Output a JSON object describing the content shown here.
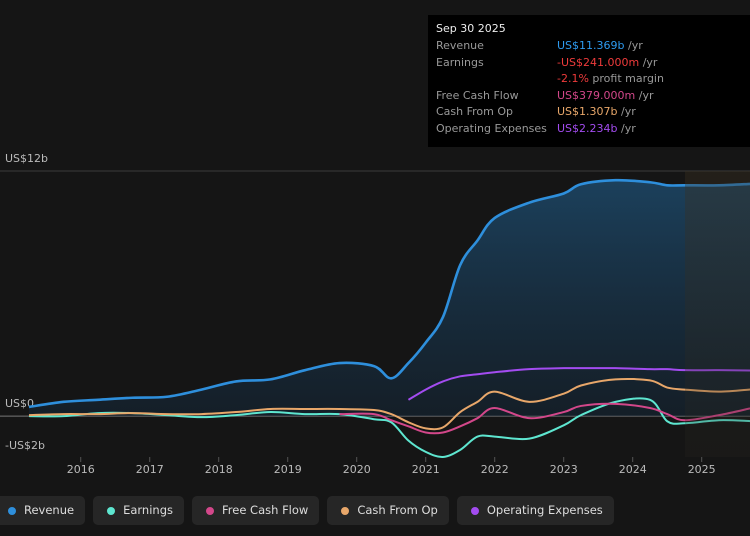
{
  "chart_data": {
    "type": "line",
    "x": [
      2015.25,
      2015.75,
      2016.25,
      2016.75,
      2017.25,
      2017.75,
      2018.25,
      2018.75,
      2019.25,
      2019.75,
      2020.25,
      2020.5,
      2020.75,
      2021,
      2021.25,
      2021.5,
      2021.75,
      2022,
      2022.5,
      2023,
      2023.25,
      2023.75,
      2024.25,
      2024.5,
      2024.75,
      2025.25,
      2025.7
    ],
    "xlim": [
      2014.83,
      2025.7
    ],
    "xticks": [
      2016,
      2017,
      2018,
      2019,
      2020,
      2021,
      2022,
      2023,
      2024,
      2025
    ],
    "ylim": [
      -2,
      12
    ],
    "yticks": [
      {
        "value": -2,
        "label": "-US$2b"
      },
      {
        "value": 0,
        "label": "US$0"
      },
      {
        "value": 12,
        "label": "US$12b"
      }
    ],
    "series": [
      {
        "name": "Revenue",
        "color": "#2e8fdc",
        "values": [
          0.45,
          0.7,
          0.8,
          0.9,
          0.95,
          1.3,
          1.7,
          1.8,
          2.25,
          2.6,
          2.45,
          1.85,
          2.6,
          3.6,
          4.85,
          7.4,
          8.6,
          9.7,
          10.45,
          10.9,
          11.35,
          11.55,
          11.45,
          11.3,
          11.3,
          11.3,
          11.369
        ]
      },
      {
        "name": "Earnings",
        "color": "#5ee6d0",
        "values": [
          0,
          0,
          0.15,
          0.15,
          0.05,
          -0.05,
          0.05,
          0.2,
          0.1,
          0.1,
          -0.15,
          -0.3,
          -1.2,
          -1.75,
          -2.0,
          -1.65,
          -1.0,
          -1.0,
          -1.1,
          -0.45,
          0.05,
          0.7,
          0.8,
          -0.25,
          -0.35,
          -0.2,
          -0.241
        ]
      },
      {
        "name": "Free Cash Flow",
        "color": "#d3478a",
        "values": [
          null,
          null,
          null,
          null,
          null,
          null,
          null,
          null,
          null,
          0.1,
          0.1,
          -0.2,
          -0.5,
          -0.8,
          -0.8,
          -0.5,
          -0.1,
          0.4,
          -0.1,
          0.2,
          0.5,
          0.6,
          0.4,
          0.1,
          -0.2,
          0.05,
          0.379
        ]
      },
      {
        "name": "Cash From Op",
        "color": "#e8a76a",
        "values": [
          0.05,
          0.1,
          0.1,
          0.15,
          0.1,
          0.1,
          0.2,
          0.35,
          0.35,
          0.35,
          0.3,
          0.1,
          -0.3,
          -0.6,
          -0.55,
          0.2,
          0.7,
          1.2,
          0.7,
          1.1,
          1.5,
          1.8,
          1.75,
          1.4,
          1.3,
          1.2,
          1.307
        ]
      },
      {
        "name": "Operating Expenses",
        "color": "#a34cf0",
        "values": [
          null,
          null,
          null,
          null,
          null,
          null,
          null,
          null,
          null,
          null,
          null,
          null,
          0.8,
          1.3,
          1.7,
          1.95,
          2.05,
          2.15,
          2.3,
          2.35,
          2.35,
          2.35,
          2.3,
          2.3,
          2.25,
          2.25,
          2.234
        ]
      }
    ]
  },
  "tooltip": {
    "title": "Sep 30 2025",
    "rows": [
      {
        "label": "Revenue",
        "value": "US$11.369b",
        "unit": "/yr"
      },
      {
        "label": "Earnings",
        "value": "-US$241.000m",
        "unit": "/yr"
      },
      {
        "label": null,
        "value": "-2.1%",
        "unit": "profit margin"
      },
      {
        "label": "Free Cash Flow",
        "value": "US$379.000m",
        "unit": "/yr"
      },
      {
        "label": "Cash From Op",
        "value": "US$1.307b",
        "unit": "/yr"
      },
      {
        "label": "Operating Expenses",
        "value": "US$2.234b",
        "unit": "/yr"
      }
    ]
  }
}
